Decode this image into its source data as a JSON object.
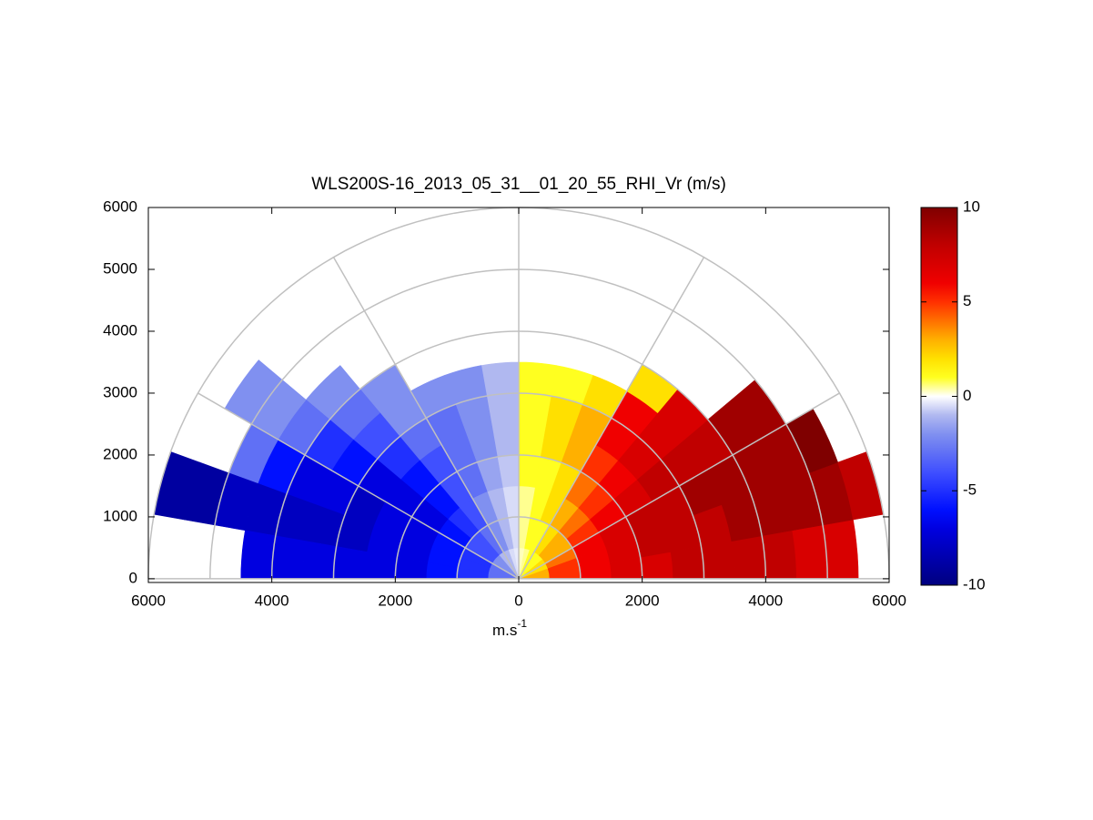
{
  "chart_data": {
    "type": "polar_heatmap",
    "title": "WLS200S-16_2013_05_31__01_20_55_RHI_Vr (m/s)",
    "xlabel": "m.s",
    "xlabel_sup": "-1",
    "xlim": [
      -6000,
      6000
    ],
    "ylim": [
      -60,
      6000
    ],
    "xticks": [
      {
        "value": -6000,
        "label": "6000"
      },
      {
        "value": -4000,
        "label": "4000"
      },
      {
        "value": -2000,
        "label": "2000"
      },
      0,
      2000,
      4000,
      6000
    ],
    "yticks": [
      0,
      1000,
      2000,
      3000,
      4000,
      5000,
      6000
    ],
    "rings": [
      1000,
      2000,
      3000,
      4000,
      5000,
      6000
    ],
    "spokes": [
      0,
      30,
      60,
      90,
      120,
      150,
      180
    ],
    "clim": [
      -10,
      10
    ],
    "cticks": [
      -10,
      -5,
      0,
      5,
      10
    ],
    "colormap": [
      "#00007f",
      "#0000a0",
      "#0000c0",
      "#0000e0",
      "#0010ff",
      "#2030ff",
      "#4050ff",
      "#6070f5",
      "#8090f0",
      "#b0b8f0",
      "#ffffff",
      "#ffff20",
      "#ffe000",
      "#ffb000",
      "#ff7000",
      "#ff3000",
      "#f00000",
      "#d80000",
      "#c00000",
      "#a00000",
      "#7f0000"
    ],
    "ranges": [
      250,
      750,
      1250,
      1750,
      2250,
      2750,
      3250,
      3750,
      4250,
      4750,
      5250,
      5750
    ],
    "angles": [
      5,
      15,
      25,
      35,
      45,
      55,
      65,
      75,
      85,
      95,
      105,
      115,
      125,
      135,
      145,
      155,
      165,
      175
    ],
    "values": [
      [
        3,
        5,
        6,
        7,
        7,
        8,
        8,
        8,
        8,
        7,
        7,
        null
      ],
      [
        3,
        5,
        6,
        7,
        8,
        8,
        8,
        9,
        9,
        9,
        9,
        8
      ],
      [
        2,
        4,
        6,
        7,
        8,
        8,
        9,
        9,
        9,
        9,
        10,
        null
      ],
      [
        2,
        3,
        5,
        6,
        7,
        8,
        8,
        8,
        9,
        9,
        null,
        null
      ],
      [
        1,
        3,
        4,
        5,
        6,
        7,
        7,
        7,
        null,
        null,
        null,
        null
      ],
      [
        1,
        2,
        3,
        4,
        5,
        6,
        6,
        2,
        null,
        null,
        null,
        null
      ],
      [
        1,
        1,
        2,
        2,
        3,
        3,
        2,
        null,
        null,
        null,
        null,
        null
      ],
      [
        0.5,
        1,
        1,
        1,
        2,
        2,
        1,
        null,
        null,
        null,
        null,
        null
      ],
      [
        0.3,
        0.5,
        0.5,
        1,
        1,
        1,
        1,
        null,
        null,
        null,
        null,
        null
      ],
      [
        -0.3,
        -0.5,
        -0.5,
        -0.8,
        -1,
        -1,
        -1,
        null,
        null,
        null,
        null,
        null
      ],
      [
        -0.5,
        -1,
        -1,
        -1.5,
        -2,
        -2,
        -2,
        null,
        null,
        null,
        null,
        null
      ],
      [
        -1,
        -2,
        -2,
        -3,
        -3,
        -3,
        -2,
        null,
        null,
        null,
        null,
        null
      ],
      [
        -1,
        -3,
        -4,
        -4,
        -4,
        -3,
        -2,
        -2,
        null,
        null,
        null,
        null
      ],
      [
        -2,
        -4,
        -5,
        -6,
        -6,
        -5,
        -4,
        -3,
        -2,
        null,
        null,
        null
      ],
      [
        -2,
        -4,
        -6,
        -7,
        -7,
        -7,
        -6,
        -5,
        -3,
        -2,
        -2,
        null
      ],
      [
        -3,
        -5,
        -6,
        -7,
        -7,
        -8,
        -7,
        -7,
        -6,
        -3,
        null,
        null
      ],
      [
        -3,
        -5,
        -6,
        -7,
        -7,
        -8,
        -8,
        -8,
        -8,
        -8,
        -9,
        -9
      ],
      [
        -3,
        -5,
        -6,
        -7,
        -7,
        -7,
        -7,
        -7,
        -7,
        null,
        null,
        null
      ]
    ]
  }
}
